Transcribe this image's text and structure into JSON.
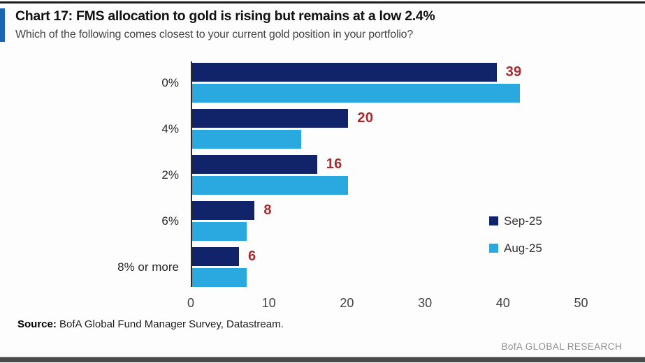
{
  "header": {
    "title": "Chart 17: FMS allocation to gold is rising but remains at a low 2.4%",
    "subtitle": "Which of the following comes closest to your current gold position in your portfolio?"
  },
  "chart_data": {
    "type": "bar",
    "orientation": "horizontal",
    "title": "Chart 17: FMS allocation to gold is rising but remains at a low 2.4%",
    "subtitle": "Which of the following comes closest to your current gold position in your portfolio?",
    "categories": [
      "0%",
      "4%",
      "2%",
      "6%",
      "8% or more"
    ],
    "series": [
      {
        "name": "Sep-25",
        "values": [
          39,
          20,
          16,
          8,
          6
        ],
        "color": "#112369",
        "data_labels": true
      },
      {
        "name": "Aug-25",
        "values": [
          42,
          14,
          20,
          7,
          7
        ],
        "color": "#2aa9e0",
        "data_labels": false
      }
    ],
    "data_label_color": "#a32c2e",
    "xticks": [
      0,
      10,
      20,
      30,
      40,
      50
    ],
    "xlim": [
      0,
      54
    ],
    "grid": false,
    "legend_position": "center-right"
  },
  "footer": {
    "source_label": "Source:",
    "source_text": " BofA Global Fund Manager Survey, Datastream.",
    "brand": "BofA GLOBAL RESEARCH"
  },
  "colors": {
    "accent_bar": "#1c67b2",
    "navy": "#112369",
    "light_blue": "#2aa9e0",
    "label_red": "#a32c2e",
    "axis_line": "#2a2a2a"
  }
}
